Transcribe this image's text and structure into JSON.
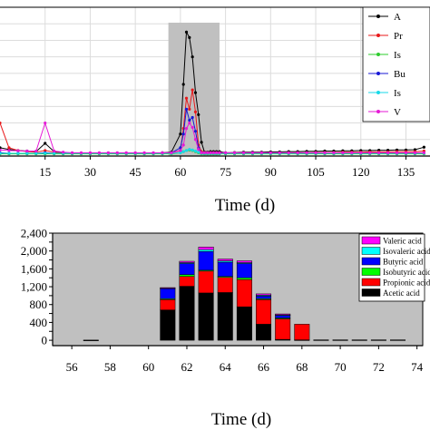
{
  "chart_data": [
    {
      "type": "line",
      "xlabel": "Time (d)",
      "ylabel": "",
      "xlim": [
        0,
        143
      ],
      "ylim": [
        0,
        2700
      ],
      "x_ticks": [
        15,
        30,
        45,
        60,
        75,
        90,
        105,
        120,
        135
      ],
      "grid": true,
      "legend": "top-right",
      "shaded_region": [
        56,
        73
      ],
      "x": [
        0,
        3,
        6,
        9,
        12,
        15,
        18,
        21,
        24,
        27,
        30,
        33,
        36,
        39,
        42,
        45,
        48,
        51,
        54,
        57,
        60,
        61,
        62,
        63,
        64,
        65,
        66,
        67,
        68,
        69,
        70,
        71,
        72,
        73,
        75,
        78,
        81,
        84,
        87,
        90,
        93,
        96,
        99,
        102,
        105,
        108,
        111,
        114,
        117,
        120,
        123,
        126,
        129,
        132,
        135,
        138,
        141
      ],
      "series": [
        {
          "name": "Acetic acid",
          "label": "A",
          "color": "#000000",
          "marker": "square",
          "values": [
            150,
            120,
            100,
            90,
            80,
            230,
            80,
            60,
            55,
            50,
            50,
            50,
            55,
            50,
            50,
            50,
            50,
            50,
            60,
            70,
            400,
            1300,
            2250,
            2150,
            1800,
            1150,
            750,
            250,
            70,
            70,
            80,
            80,
            80,
            80,
            60,
            65,
            70,
            70,
            70,
            75,
            75,
            80,
            80,
            85,
            85,
            90,
            90,
            95,
            95,
            100,
            100,
            105,
            105,
            110,
            110,
            115,
            160
          ]
        },
        {
          "name": "Propionic acid",
          "label": "Pr",
          "color": "#e8191b",
          "marker": "circle",
          "values": [
            600,
            150,
            100,
            80,
            70,
            100,
            70,
            50,
            50,
            50,
            50,
            50,
            50,
            50,
            50,
            50,
            50,
            50,
            50,
            50,
            100,
            500,
            1050,
            850,
            1200,
            800,
            200,
            80,
            60,
            60,
            60,
            60,
            60,
            60,
            50,
            50,
            50,
            50,
            55,
            55,
            55,
            60,
            60,
            60,
            65,
            65,
            65,
            70,
            70,
            70,
            75,
            75,
            75,
            80,
            80,
            80,
            90
          ]
        },
        {
          "name": "Isobutyric acid",
          "label": "Is",
          "color": "#2ecc2e",
          "marker": "triangle",
          "values": [
            40,
            40,
            40,
            40,
            40,
            40,
            40,
            40,
            40,
            40,
            40,
            40,
            40,
            40,
            40,
            40,
            40,
            40,
            40,
            40,
            60,
            80,
            100,
            110,
            100,
            80,
            60,
            40,
            40,
            40,
            40,
            40,
            40,
            40,
            40,
            40,
            40,
            40,
            40,
            40,
            40,
            40,
            40,
            40,
            40,
            40,
            40,
            40,
            40,
            40,
            40,
            40,
            40,
            40,
            40,
            40,
            40
          ]
        },
        {
          "name": "Butyric acid",
          "label": "Bu",
          "color": "#1717d6",
          "marker": "triangle-down",
          "values": [
            60,
            50,
            50,
            50,
            50,
            60,
            50,
            50,
            50,
            50,
            50,
            50,
            50,
            50,
            50,
            50,
            50,
            50,
            50,
            60,
            150,
            400,
            850,
            650,
            700,
            450,
            150,
            60,
            50,
            50,
            50,
            50,
            50,
            50,
            50,
            50,
            50,
            50,
            50,
            50,
            50,
            50,
            50,
            50,
            50,
            50,
            50,
            50,
            50,
            50,
            50,
            50,
            50,
            50,
            50,
            50,
            55
          ]
        },
        {
          "name": "Isovaleric acid",
          "label": "Is",
          "color": "#17d9e8",
          "marker": "diamond",
          "values": [
            50,
            50,
            50,
            50,
            50,
            50,
            50,
            50,
            50,
            50,
            50,
            50,
            50,
            50,
            50,
            50,
            50,
            50,
            50,
            50,
            60,
            80,
            100,
            120,
            110,
            90,
            70,
            50,
            50,
            50,
            50,
            50,
            50,
            50,
            50,
            50,
            50,
            50,
            50,
            50,
            50,
            50,
            50,
            50,
            50,
            50,
            50,
            50,
            50,
            50,
            50,
            50,
            50,
            50,
            50,
            50,
            50
          ]
        },
        {
          "name": "Valeric acid",
          "label": "V",
          "color": "#e619d6",
          "marker": "star",
          "values": [
            110,
            100,
            95,
            90,
            90,
            600,
            90,
            70,
            60,
            60,
            60,
            60,
            60,
            60,
            60,
            60,
            60,
            60,
            60,
            60,
            100,
            200,
            500,
            600,
            520,
            300,
            120,
            60,
            60,
            60,
            60,
            60,
            60,
            60,
            60,
            60,
            60,
            60,
            60,
            60,
            60,
            60,
            60,
            60,
            60,
            60,
            60,
            60,
            60,
            60,
            60,
            60,
            60,
            60,
            60,
            60,
            60
          ]
        }
      ]
    },
    {
      "type": "bar",
      "stacked": true,
      "xlabel": "Time (d)",
      "ylabel": "",
      "xlim": [
        55,
        74.3
      ],
      "ylim": [
        -120,
        2400
      ],
      "x_ticks": [
        "56",
        "58",
        "60",
        "62",
        "64",
        "66",
        "68",
        "70",
        "72",
        "74"
      ],
      "y_ticks": [
        "0",
        "200",
        "400",
        "600",
        "800",
        "1,000",
        "1,200",
        "1,400",
        "1,600",
        "1,800",
        "2,000",
        "2,200",
        "2,400"
      ],
      "grid": false,
      "legend": "top-right",
      "x": [
        57,
        61,
        62,
        63,
        64,
        65,
        66,
        67,
        68,
        69,
        70,
        71,
        72,
        73
      ],
      "series": [
        {
          "name": "Acetic acid",
          "color": "#000000",
          "values": [
            5,
            680,
            1210,
            1060,
            1070,
            750,
            360,
            20,
            10,
            10,
            10,
            10,
            10,
            10
          ]
        },
        {
          "name": "Propionic acid",
          "color": "#ff0000",
          "values": [
            0,
            230,
            220,
            490,
            340,
            610,
            550,
            460,
            350,
            0,
            0,
            0,
            0,
            0
          ]
        },
        {
          "name": "Isobutyric acid",
          "color": "#00ff00",
          "values": [
            0,
            20,
            40,
            20,
            20,
            40,
            20,
            20,
            0,
            0,
            0,
            0,
            0,
            0
          ]
        },
        {
          "name": "Butyric acid",
          "color": "#0000ff",
          "values": [
            0,
            230,
            250,
            420,
            320,
            320,
            60,
            60,
            0,
            0,
            0,
            0,
            0,
            0
          ]
        },
        {
          "name": "Isovaleric acid",
          "color": "#00ffff",
          "values": [
            0,
            10,
            20,
            40,
            30,
            20,
            20,
            10,
            0,
            0,
            0,
            0,
            0,
            0
          ]
        },
        {
          "name": "Valeric acid",
          "color": "#ff00ff",
          "values": [
            0,
            10,
            30,
            60,
            40,
            40,
            30,
            20,
            0,
            0,
            0,
            0,
            0,
            0
          ]
        }
      ]
    }
  ]
}
